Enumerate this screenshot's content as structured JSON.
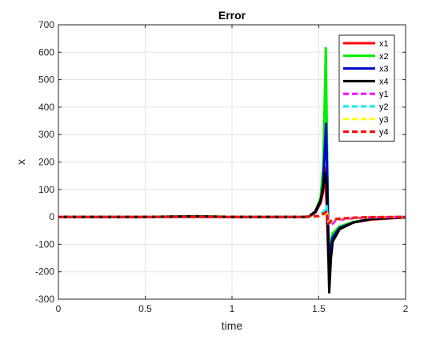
{
  "chart_data": {
    "type": "line",
    "title": "Error",
    "xlabel": "time",
    "ylabel": "x",
    "xlim": [
      0,
      2
    ],
    "ylim": [
      -300,
      700
    ],
    "xticks": [
      0,
      0.5,
      1,
      1.5,
      2
    ],
    "xtick_labels": [
      "0",
      "0.5",
      "1",
      "1.5",
      "2"
    ],
    "yticks": [
      -300,
      -200,
      -100,
      0,
      100,
      200,
      300,
      400,
      500,
      600,
      700
    ],
    "ytick_labels": [
      "-300",
      "-200",
      "-100",
      "0",
      "100",
      "200",
      "300",
      "400",
      "500",
      "600",
      "700"
    ],
    "grid": true,
    "legend_position": "top-right",
    "series": [
      {
        "name": "x1",
        "color": "#ff0000",
        "style": "solid",
        "x": [
          0,
          0.5,
          0.8,
          1.0,
          1.3,
          1.44,
          1.48,
          1.51,
          1.525,
          1.535,
          1.545,
          1.555,
          1.565,
          1.58,
          1.62,
          1.7,
          1.8,
          2.0
        ],
        "y": [
          0,
          0,
          1,
          0,
          0,
          0,
          15,
          50,
          90,
          180,
          40,
          -150,
          -120,
          -70,
          -40,
          -20,
          -10,
          -2
        ]
      },
      {
        "name": "x2",
        "color": "#00ee00",
        "style": "solid",
        "x": [
          0,
          0.5,
          0.8,
          1.0,
          1.3,
          1.44,
          1.48,
          1.51,
          1.525,
          1.533,
          1.54,
          1.548,
          1.555,
          1.565,
          1.58,
          1.62,
          1.7,
          1.8,
          2.0
        ],
        "y": [
          0,
          0,
          2,
          0,
          0,
          0,
          20,
          70,
          180,
          400,
          615,
          250,
          -130,
          -90,
          -60,
          -35,
          -18,
          -8,
          -1
        ]
      },
      {
        "name": "x3",
        "color": "#0000cc",
        "style": "solid",
        "x": [
          0,
          0.5,
          0.8,
          1.0,
          1.3,
          1.44,
          1.48,
          1.51,
          1.525,
          1.535,
          1.542,
          1.55,
          1.558,
          1.568,
          1.58,
          1.62,
          1.7,
          1.8,
          2.0
        ],
        "y": [
          0,
          0,
          1,
          0,
          0,
          0,
          18,
          55,
          120,
          250,
          340,
          100,
          -160,
          -110,
          -75,
          -40,
          -20,
          -8,
          -1
        ]
      },
      {
        "name": "x4",
        "color": "#000000",
        "style": "solid",
        "x": [
          0,
          0.5,
          0.8,
          1.0,
          1.3,
          1.44,
          1.48,
          1.51,
          1.525,
          1.535,
          1.545,
          1.553,
          1.56,
          1.57,
          1.58,
          1.62,
          1.7,
          1.8,
          2.0
        ],
        "y": [
          0,
          0,
          2,
          0,
          0,
          0,
          20,
          60,
          100,
          160,
          120,
          -80,
          -275,
          -150,
          -90,
          -45,
          -20,
          -8,
          -2
        ]
      },
      {
        "name": "y1",
        "color": "#ff00ff",
        "style": "dashed",
        "x": [
          0,
          0.5,
          1.0,
          1.4,
          1.5,
          1.53,
          1.545,
          1.555,
          1.57,
          1.6,
          1.7,
          1.8,
          2.0
        ],
        "y": [
          0,
          0,
          0,
          0,
          2,
          15,
          30,
          -20,
          -30,
          -12,
          -5,
          -2,
          0
        ]
      },
      {
        "name": "y2",
        "color": "#00eeee",
        "style": "dashed",
        "x": [
          0,
          0.5,
          1.0,
          1.4,
          1.5,
          1.53,
          1.545,
          1.555,
          1.57,
          1.6,
          1.7,
          1.8,
          2.0
        ],
        "y": [
          0,
          0,
          0,
          0,
          3,
          20,
          40,
          -25,
          -20,
          -10,
          -4,
          -2,
          0
        ]
      },
      {
        "name": "y3",
        "color": "#ffff00",
        "style": "dashed",
        "x": [
          0,
          0.5,
          1.0,
          1.4,
          1.5,
          1.53,
          1.545,
          1.555,
          1.57,
          1.6,
          1.7,
          1.8,
          2.0
        ],
        "y": [
          0,
          0,
          0,
          0,
          2,
          10,
          25,
          -15,
          -18,
          -9,
          -4,
          -1,
          0
        ]
      },
      {
        "name": "y4",
        "color": "#ff0000",
        "style": "dashed",
        "x": [
          0,
          0.5,
          1.0,
          1.4,
          1.5,
          1.53,
          1.545,
          1.555,
          1.57,
          1.6,
          1.7,
          1.8,
          2.0
        ],
        "y": [
          0,
          0,
          0,
          0,
          3,
          12,
          20,
          -25,
          -15,
          -8,
          -3,
          -1,
          0
        ]
      }
    ]
  }
}
